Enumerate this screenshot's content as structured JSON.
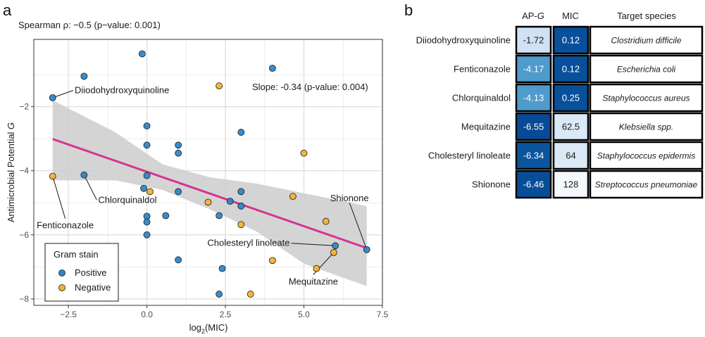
{
  "panel_a": {
    "letter": "a",
    "spearman_label": "Spearman ρ: −0.5 (p−value: 0.001)",
    "slope_label": "Slope: -0.34 (p-value: 0.004)",
    "legend": {
      "title": "Gram stain",
      "items": [
        "Positive",
        "Negative"
      ]
    },
    "colors": {
      "positive": "#2f86c8",
      "negative": "#f2b130",
      "fit_line": "#d63390",
      "ci_band": "#cccccc",
      "grid": "#ebebeb"
    }
  },
  "chart_data": {
    "type": "scatter",
    "xlabel_main": "log",
    "xlabel_sub": "2",
    "xlabel_rest": "(MIC)",
    "ylabel_main": "Antimicrobial Potential ",
    "ylabel_italic": "G",
    "xlim": [
      -3.6,
      7.5
    ],
    "ylim": [
      -8.2,
      0.1
    ],
    "xticks": [
      -2.5,
      0.0,
      2.5,
      5.0,
      7.5
    ],
    "xtick_labels": [
      "−2.5",
      "0.0",
      "2.5",
      "5.0",
      "7.5"
    ],
    "yticks": [
      -8,
      -6,
      -4,
      -2
    ],
    "ytick_labels": [
      "−8",
      "−6",
      "−4",
      "−2"
    ],
    "fit": {
      "slope": -0.34,
      "x_range": [
        -3,
        7
      ],
      "intercept_at_x0": -4.03
    },
    "ci_band": [
      {
        "x": -3.0,
        "lo": -4.3,
        "hi": -1.8
      },
      {
        "x": -1.0,
        "lo": -4.3,
        "hi": -2.8
      },
      {
        "x": 0.5,
        "lo": -4.6,
        "hi": -3.8
      },
      {
        "x": 2.0,
        "lo": -5.2,
        "hi": -4.2
      },
      {
        "x": 3.5,
        "lo": -5.9,
        "hi": -4.4
      },
      {
        "x": 5.0,
        "lo": -6.9,
        "hi": -4.7
      },
      {
        "x": 7.0,
        "lo": -7.6,
        "hi": -5.1
      }
    ],
    "series": [
      {
        "name": "Positive",
        "points": [
          {
            "x": -3.0,
            "y": -1.72
          },
          {
            "x": -2.0,
            "y": -1.05
          },
          {
            "x": -0.15,
            "y": -0.35
          },
          {
            "x": 4.0,
            "y": -0.8
          },
          {
            "x": 3.0,
            "y": -2.8
          },
          {
            "x": 0.0,
            "y": -2.6
          },
          {
            "x": 0.0,
            "y": -3.2
          },
          {
            "x": 1.0,
            "y": -3.2
          },
          {
            "x": 1.0,
            "y": -3.45
          },
          {
            "x": -2.0,
            "y": -4.13
          },
          {
            "x": 0.0,
            "y": -4.15
          },
          {
            "x": -0.1,
            "y": -4.55
          },
          {
            "x": 1.0,
            "y": -4.65
          },
          {
            "x": 2.65,
            "y": -4.95
          },
          {
            "x": 3.0,
            "y": -4.65
          },
          {
            "x": 3.0,
            "y": -5.1
          },
          {
            "x": 0.6,
            "y": -5.4
          },
          {
            "x": 0.0,
            "y": -5.42
          },
          {
            "x": 0.0,
            "y": -5.6
          },
          {
            "x": 2.3,
            "y": -5.4
          },
          {
            "x": 0.0,
            "y": -6.0
          },
          {
            "x": 7.0,
            "y": -6.46
          },
          {
            "x": 6.0,
            "y": -6.34
          },
          {
            "x": 1.0,
            "y": -6.78
          },
          {
            "x": 2.4,
            "y": -7.05
          },
          {
            "x": 2.3,
            "y": -7.85
          }
        ]
      },
      {
        "name": "Negative",
        "points": [
          {
            "x": -3.0,
            "y": -4.17
          },
          {
            "x": 2.3,
            "y": -1.35
          },
          {
            "x": 5.0,
            "y": -3.45
          },
          {
            "x": 0.1,
            "y": -4.65
          },
          {
            "x": 1.95,
            "y": -4.98
          },
          {
            "x": 4.65,
            "y": -4.8
          },
          {
            "x": 5.7,
            "y": -5.58
          },
          {
            "x": 3.0,
            "y": -5.68
          },
          {
            "x": 5.95,
            "y": -6.55
          },
          {
            "x": 4.0,
            "y": -6.8
          },
          {
            "x": 5.4,
            "y": -7.05
          },
          {
            "x": 3.3,
            "y": -7.85
          }
        ]
      }
    ],
    "annotations": [
      {
        "text": "Diiodohydroxyquinoline",
        "px": -3.0,
        "py": -1.72,
        "tx": -2.3,
        "ty": -1.58,
        "anchor": "start"
      },
      {
        "text": "Chlorquinaldol",
        "px": -2.0,
        "py": -4.13,
        "tx": -1.55,
        "ty": -5.0,
        "anchor": "start"
      },
      {
        "text": "Fenticonazole",
        "px": -3.0,
        "py": -4.17,
        "tx": -2.6,
        "ty": -5.8,
        "anchor": "middle"
      },
      {
        "text": "Shionone",
        "px": 7.0,
        "py": -6.46,
        "tx": 6.45,
        "ty": -4.95,
        "anchor": "middle"
      },
      {
        "text": "Cholesteryl linoleate",
        "px": 6.0,
        "py": -6.34,
        "tx": 4.55,
        "ty": -6.35,
        "anchor": "end"
      },
      {
        "text": "Mequitazine",
        "px": 5.95,
        "py": -6.55,
        "tx": 5.3,
        "ty": -7.55,
        "anchor": "middle"
      }
    ]
  },
  "panel_b": {
    "letter": "b",
    "headers": {
      "apg_main": "AP-",
      "apg_italic": "G",
      "mic": "MIC",
      "species": "Target species"
    },
    "rows": [
      {
        "compound": "Diiodohydroxyquinoline",
        "apg": "-1.72",
        "mic": "0.12",
        "species": "Clostridium difficile",
        "apg_color": "#cfe1f2",
        "mic_color": "#08509b",
        "apg_text": "#1a1a1a",
        "mic_text": "#ffffff"
      },
      {
        "compound": "Fenticonazole",
        "apg": "-4.17",
        "mic": "0.12",
        "species": "Escherichia coli",
        "apg_color": "#4f9bcc",
        "mic_color": "#08509b",
        "apg_text": "#ffffff",
        "mic_text": "#ffffff"
      },
      {
        "compound": "Chlorquinaldol",
        "apg": "-4.13",
        "mic": "0.25",
        "species": "Staphylococcus aureus",
        "apg_color": "#4f9bcc",
        "mic_color": "#08509b",
        "apg_text": "#ffffff",
        "mic_text": "#ffffff"
      },
      {
        "compound": "Mequitazine",
        "apg": "-6.55",
        "mic": "62.5",
        "species": "Klebsiella spp.",
        "apg_color": "#084a95",
        "mic_color": "#dbe9f6",
        "apg_text": "#ffffff",
        "mic_text": "#1a1a1a"
      },
      {
        "compound": "Cholesteryl linoleate",
        "apg": "-6.34",
        "mic": "64",
        "species": "Staphylococcus epidermis",
        "apg_color": "#0b559f",
        "mic_color": "#dbe9f6",
        "apg_text": "#ffffff",
        "mic_text": "#1a1a1a"
      },
      {
        "compound": "Shionone",
        "apg": "-6.46",
        "mic": "128",
        "species": "Streptococcus pneumoniae",
        "apg_color": "#084d98",
        "mic_color": "#f4f8fd",
        "apg_text": "#ffffff",
        "mic_text": "#1a1a1a"
      }
    ]
  }
}
